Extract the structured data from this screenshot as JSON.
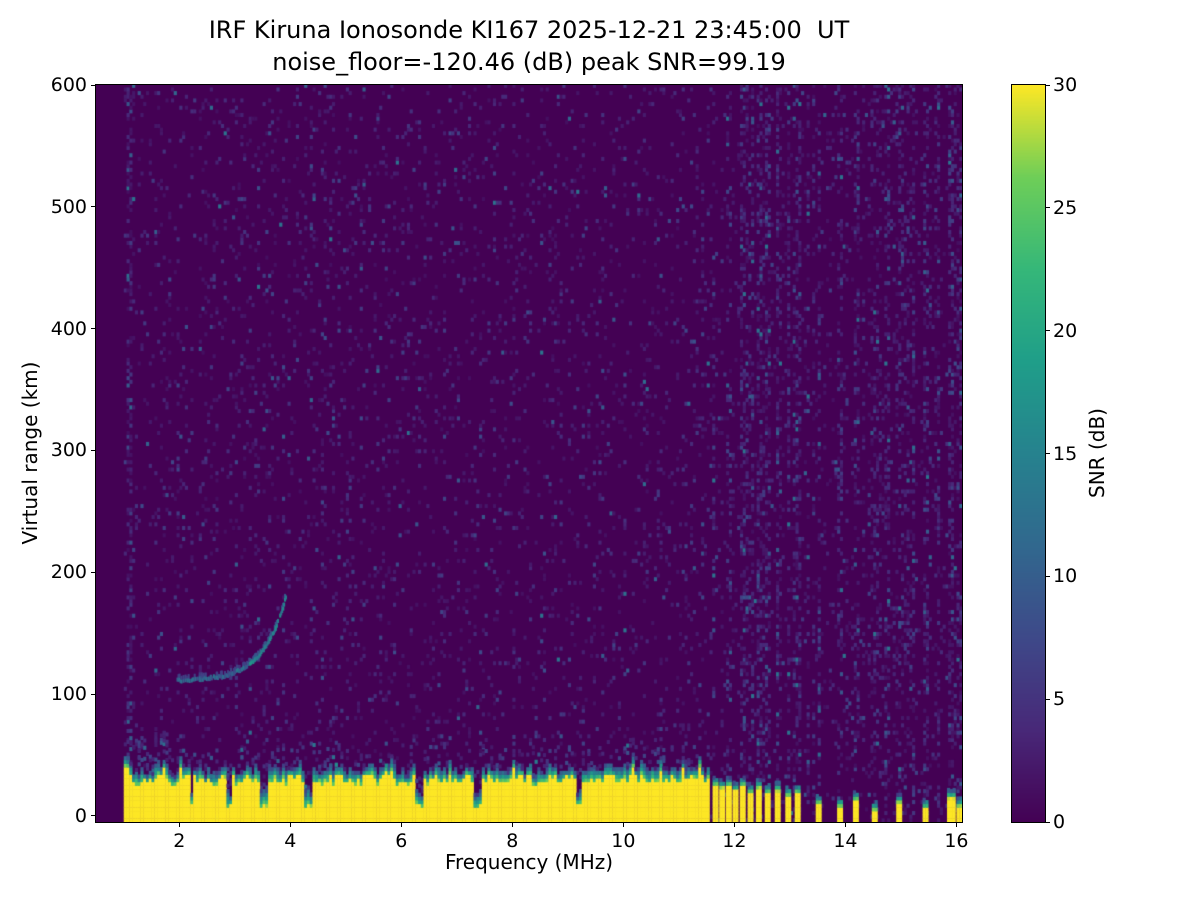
{
  "figure": {
    "title_line1": "IRF Kiruna Ionosonde KI167 2025-12-21 23:45:00  UT",
    "title_line2": "noise_floor=-120.46 (dB) peak SNR=99.19",
    "xlabel": "Frequency (MHz)",
    "ylabel": "Virtual range (km)",
    "colorbar_label": "SNR (dB)"
  },
  "chart_data": {
    "type": "heatmap",
    "title": "IRF Kiruna Ionosonde KI167 2025-12-21 23:45:00  UT",
    "subtitle": "noise_floor=-120.46 (dB) peak SNR=99.19",
    "station": "IRF Kiruna Ionosonde KI167",
    "timestamp_ut": "2025-12-21 23:45:00",
    "noise_floor_db": -120.46,
    "peak_snr_db": 99.19,
    "xlabel": "Frequency (MHz)",
    "ylabel": "Virtual range (km)",
    "xlim": [
      0.5,
      16.1
    ],
    "ylim": [
      -5,
      600
    ],
    "x_ticks": [
      2,
      4,
      6,
      8,
      10,
      12,
      14,
      16
    ],
    "y_ticks": [
      0,
      100,
      200,
      300,
      400,
      500,
      600
    ],
    "data_freq_range": [
      1.0,
      16.45
    ],
    "grid": false,
    "colorbar": {
      "label": "SNR (dB)",
      "min": 0,
      "max": 30,
      "ticks": [
        0,
        5,
        10,
        15,
        20,
        25,
        30
      ],
      "colormap": "viridis"
    },
    "colormap_anchors": [
      [
        0.0,
        "#440154"
      ],
      [
        0.125,
        "#482878"
      ],
      [
        0.25,
        "#3e4989"
      ],
      [
        0.375,
        "#31688e"
      ],
      [
        0.5,
        "#26828e"
      ],
      [
        0.625,
        "#1f9e89"
      ],
      [
        0.75,
        "#35b779"
      ],
      [
        0.875,
        "#6ece58"
      ],
      [
        1.0,
        "#fde725"
      ]
    ],
    "background_snr_db": 0,
    "noise_speckle": {
      "density": 0.08,
      "snr_db_range": [
        1,
        13
      ]
    },
    "features": {
      "ground_clutter_band": {
        "freq_range_mhz": [
          1.0,
          11.55
        ],
        "range_km": [
          -5,
          35
        ],
        "snr_db": 30,
        "notch_freqs_mhz": [
          [
            2.2,
            0.04
          ],
          [
            2.85,
            0.05
          ],
          [
            3.5,
            0.09
          ],
          [
            4.3,
            0.06
          ],
          [
            6.3,
            0.06
          ],
          [
            7.35,
            0.06
          ],
          [
            9.15,
            0.05
          ]
        ]
      },
      "interference_comb_bars": [
        {
          "freq_mhz": 11.64,
          "top_km": 30
        },
        {
          "freq_mhz": 11.76,
          "top_km": 28
        },
        {
          "freq_mhz": 11.88,
          "top_km": 30
        },
        {
          "freq_mhz": 12.0,
          "top_km": 26
        },
        {
          "freq_mhz": 12.13,
          "top_km": 30
        },
        {
          "freq_mhz": 12.27,
          "top_km": 24
        },
        {
          "freq_mhz": 12.42,
          "top_km": 28
        },
        {
          "freq_mhz": 12.58,
          "top_km": 24
        },
        {
          "freq_mhz": 12.76,
          "top_km": 26
        },
        {
          "freq_mhz": 12.95,
          "top_km": 22
        },
        {
          "freq_mhz": 13.12,
          "top_km": 24
        }
      ],
      "sparse_bars": [
        {
          "freq_mhz": 13.5,
          "top_km": 15,
          "width_mhz": 0.07
        },
        {
          "freq_mhz": 13.88,
          "top_km": 13,
          "width_mhz": 0.06
        },
        {
          "freq_mhz": 14.17,
          "top_km": 18,
          "width_mhz": 0.07
        },
        {
          "freq_mhz": 14.5,
          "top_km": 10,
          "width_mhz": 0.05
        },
        {
          "freq_mhz": 14.95,
          "top_km": 16,
          "width_mhz": 0.07
        },
        {
          "freq_mhz": 15.42,
          "top_km": 12,
          "width_mhz": 0.06
        },
        {
          "freq_mhz": 15.88,
          "top_km": 20,
          "width_mhz": 0.1
        },
        {
          "freq_mhz": 16.03,
          "top_km": 13,
          "width_mhz": 0.06
        }
      ],
      "echo_trace": {
        "snr_db": 15,
        "points_mhz_km": [
          [
            1.95,
            110
          ],
          [
            2.15,
            110
          ],
          [
            2.35,
            111
          ],
          [
            2.55,
            112
          ],
          [
            2.75,
            113
          ],
          [
            2.95,
            116
          ],
          [
            3.15,
            120
          ],
          [
            3.35,
            127
          ],
          [
            3.5,
            135
          ],
          [
            3.62,
            144
          ],
          [
            3.72,
            153
          ],
          [
            3.8,
            163
          ],
          [
            3.87,
            172
          ],
          [
            3.92,
            182
          ]
        ]
      },
      "noisy_streak_freqs_mhz": [
        1.08,
        11.9,
        12.13,
        12.27,
        12.42,
        12.58,
        12.76,
        12.95,
        13.12,
        13.3,
        13.5,
        13.88,
        14.17,
        14.5,
        14.72,
        14.95,
        15.2,
        15.42,
        15.65,
        15.88,
        16.03
      ]
    }
  }
}
